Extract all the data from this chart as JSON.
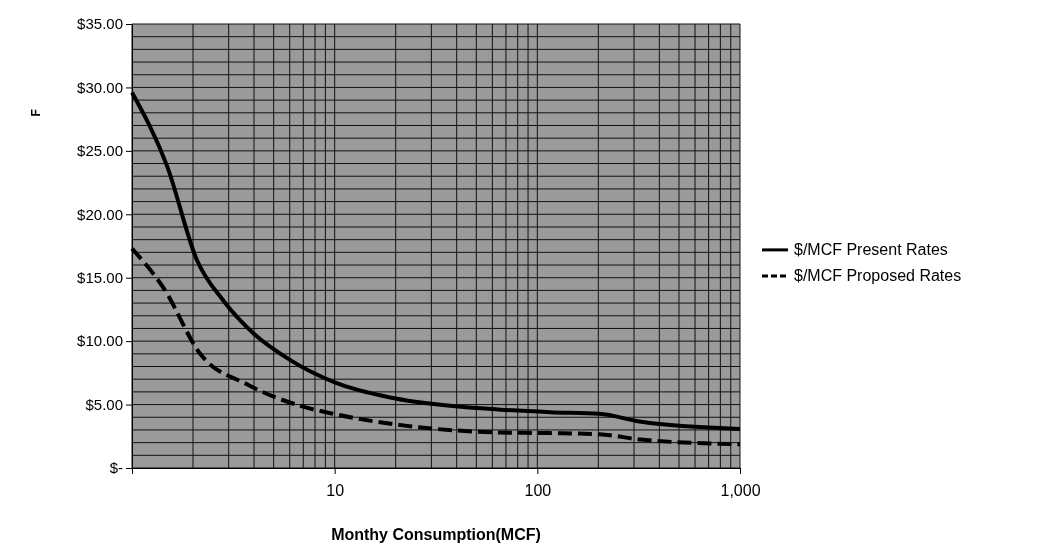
{
  "chart_data": {
    "type": "line",
    "xlabel": "Monthy Consumption(MCF)",
    "ylabel": "F",
    "log": "x",
    "xlim": [
      1,
      1000
    ],
    "xticks": [
      {
        "value": 1,
        "label": null
      },
      10,
      100,
      {
        "value": 1000,
        "label": "1,000"
      }
    ],
    "ylim": [
      0,
      35
    ],
    "yticks": [
      {
        "value": 0,
        "label": "$-"
      },
      {
        "value": 5,
        "label": "$5.00"
      },
      {
        "value": 10,
        "label": "$10.00"
      },
      {
        "value": 15,
        "label": "$15.00"
      },
      {
        "value": 20,
        "label": "$20.00"
      },
      {
        "value": 25,
        "label": "$25.00"
      },
      {
        "value": 30,
        "label": "$30.00"
      },
      {
        "value": 35,
        "label": "$35.00"
      }
    ],
    "grid": true,
    "legend": "right",
    "marker": "none",
    "series": [
      {
        "name": "$/MCF Present Rates",
        "color": "#000000",
        "line_style": "solid",
        "x": [
          1,
          1.49,
          2.09,
          2.82,
          3.98,
          6.04,
          10,
          18.8,
          37,
          65.6,
          116,
          202,
          325,
          1000
        ],
        "values": [
          29.6,
          23.8,
          16.4,
          13.2,
          10.6,
          8.5,
          6.75,
          5.56,
          4.9,
          4.6,
          4.4,
          4.27,
          3.64,
          3.08
        ]
      },
      {
        "name": "$/MCF Proposed Rates",
        "color": "#000000",
        "line_style": "dashed",
        "x": [
          1,
          1.43,
          2.17,
          3.69,
          6.77,
          10,
          22.7,
          65.6,
          116,
          202,
          325,
          1000
        ],
        "values": [
          17.3,
          14.2,
          9.0,
          6.6,
          4.9,
          4.25,
          3.32,
          2.8,
          2.75,
          2.66,
          2.24,
          1.87
        ]
      }
    ]
  }
}
